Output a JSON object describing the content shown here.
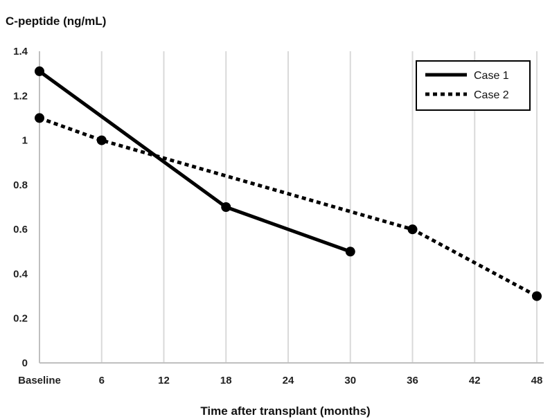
{
  "chart_data": {
    "type": "line",
    "ylabel": "C-peptide (ng/mL)",
    "xlabel": "Time after transplant (months)",
    "x_categories": [
      "Baseline",
      "6",
      "12",
      "18",
      "24",
      "30",
      "36",
      "42",
      "48"
    ],
    "x_values": [
      0,
      6,
      12,
      18,
      24,
      30,
      36,
      42,
      48
    ],
    "ylim": [
      0,
      1.4
    ],
    "xlim": [
      0,
      48
    ],
    "yticks": [
      "0",
      "0.2",
      "0.4",
      "0.6",
      "0.8",
      "1",
      "1.2",
      "1.4"
    ],
    "ytick_values": [
      0,
      0.2,
      0.4,
      0.6,
      0.8,
      1.0,
      1.2,
      1.4
    ],
    "grid": "vertical",
    "legend_position": "top-right",
    "series": [
      {
        "name": "Case 1",
        "style": "solid",
        "color": "#000000",
        "points": [
          {
            "x": 0,
            "y": 1.31
          },
          {
            "x": 18,
            "y": 0.7
          },
          {
            "x": 30,
            "y": 0.5
          }
        ]
      },
      {
        "name": "Case 2",
        "style": "dotted",
        "color": "#000000",
        "points": [
          {
            "x": 0,
            "y": 1.1
          },
          {
            "x": 6,
            "y": 1.0
          },
          {
            "x": 36,
            "y": 0.6
          },
          {
            "x": 48,
            "y": 0.3
          }
        ]
      }
    ]
  },
  "colors": {
    "gridline": "#d9d9d9",
    "axis": "#bfbfbf",
    "series": "#000000",
    "background": "#ffffff"
  }
}
